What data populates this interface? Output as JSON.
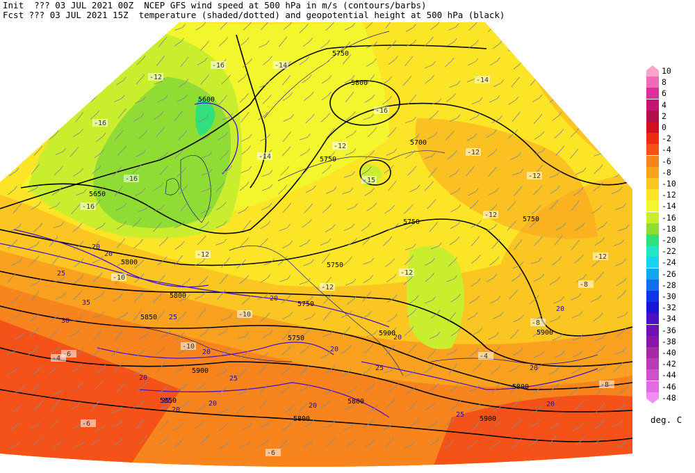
{
  "header": {
    "line1": "Init  ??? 03 JUL 2021 00Z  NCEP GFS wind speed at 500 hPa in m/s (contours/barbs)",
    "line2": "Fcst ??? 03 JUL 2021 15Z  temperature (shaded/dotted) and geopotential height at 500 hPa (black)"
  },
  "legend": {
    "units": "deg. C",
    "entries": [
      {
        "label": "10",
        "color": "#f7a6c9"
      },
      {
        "label": "8",
        "color": "#f06ab8"
      },
      {
        "label": "6",
        "color": "#dc2e9c"
      },
      {
        "label": "4",
        "color": "#c21674"
      },
      {
        "label": "2",
        "color": "#b0114b"
      },
      {
        "label": "0",
        "color": "#d10f1f"
      },
      {
        "label": "-2",
        "color": "#ee2a13"
      },
      {
        "label": "-4",
        "color": "#f5521a"
      },
      {
        "label": "-6",
        "color": "#f7841d"
      },
      {
        "label": "-8",
        "color": "#faa21f"
      },
      {
        "label": "-10",
        "color": "#fbc522"
      },
      {
        "label": "-12",
        "color": "#fce526"
      },
      {
        "label": "-14",
        "color": "#f3f62c"
      },
      {
        "label": "-16",
        "color": "#c9ee2e"
      },
      {
        "label": "-18",
        "color": "#8fdc34"
      },
      {
        "label": "-20",
        "color": "#2fe07c"
      },
      {
        "label": "-22",
        "color": "#24e6c6"
      },
      {
        "label": "-24",
        "color": "#19d4ee"
      },
      {
        "label": "-26",
        "color": "#12a6ee"
      },
      {
        "label": "-28",
        "color": "#1070ec"
      },
      {
        "label": "-30",
        "color": "#0e36e6"
      },
      {
        "label": "-32",
        "color": "#1a14d4"
      },
      {
        "label": "-34",
        "color": "#4a10c4"
      },
      {
        "label": "-36",
        "color": "#6e10b4"
      },
      {
        "label": "-38",
        "color": "#8a16a8"
      },
      {
        "label": "-40",
        "color": "#a62aa4"
      },
      {
        "label": "-42",
        "color": "#bc3cb8"
      },
      {
        "label": "-44",
        "color": "#d050cc"
      },
      {
        "label": "-46",
        "color": "#e06ee2"
      },
      {
        "label": "-48",
        "color": "#f08ef2"
      }
    ]
  },
  "map": {
    "height_labels": [
      "5750",
      "5800",
      "5600",
      "5650",
      "5750",
      "5700",
      "5750",
      "5750",
      "5750",
      "5800",
      "5750",
      "5800",
      "5850",
      "5750",
      "5900",
      "5900",
      "5850",
      "5800",
      "5800",
      "5800",
      "5900",
      "5900"
    ],
    "temp_labels": [
      "-16",
      "-14",
      "-14",
      "-12",
      "-16",
      "-16",
      "-12",
      "-16",
      "-16",
      "-14",
      "-12",
      "-15",
      "-12",
      "-12",
      "-12",
      "-12",
      "-12",
      "-12",
      "-10",
      "-8",
      "-10",
      "-6",
      "-8",
      "-6",
      "-4",
      "-8",
      "-6",
      "-4",
      "-10"
    ],
    "wind_labels": [
      "20",
      "20",
      "25",
      "35",
      "30",
      "20",
      "25",
      "20",
      "25",
      "20",
      "20",
      "25",
      "20",
      "25",
      "20",
      "20",
      "20",
      "20",
      "20",
      "25",
      "20"
    ]
  }
}
